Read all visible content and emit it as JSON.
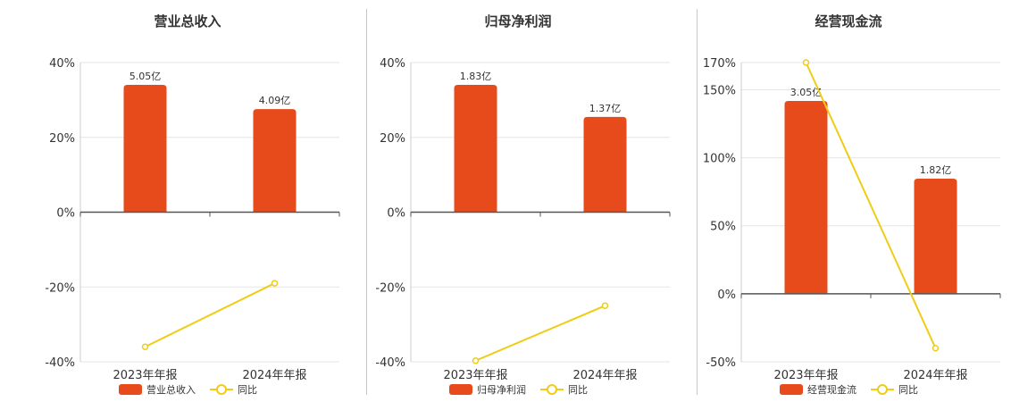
{
  "colors": {
    "bar": "#E84B1B",
    "line": "#F0CC14",
    "grid": "#e6e6e6",
    "axis": "#555555"
  },
  "legend": {
    "line_label": "同比"
  },
  "chart_data": [
    {
      "type": "bar",
      "title": "营业总收入",
      "categories": [
        "2023年年报",
        "2024年年报"
      ],
      "series": [
        {
          "name": "营业总收入",
          "type": "bar",
          "values": [
            5.05,
            4.09
          ],
          "labels": [
            "5.05亿",
            "4.09亿"
          ]
        },
        {
          "name": "同比",
          "type": "line",
          "values": [
            -36,
            -19
          ]
        }
      ],
      "ylim": [
        -40,
        40
      ],
      "yticks": [
        40,
        20,
        0,
        -20,
        -40
      ],
      "ytick_labels": [
        "40%",
        "20%",
        "0%",
        "-20%",
        "-40%"
      ],
      "grid": true,
      "legend": "bottom"
    },
    {
      "type": "bar",
      "title": "归母净利润",
      "categories": [
        "2023年年报",
        "2024年年报"
      ],
      "series": [
        {
          "name": "归母净利润",
          "type": "bar",
          "values": [
            1.83,
            1.37
          ],
          "labels": [
            "1.83亿",
            "1.37亿"
          ]
        },
        {
          "name": "同比",
          "type": "line",
          "values": [
            -39.7,
            -25
          ]
        }
      ],
      "ylim": [
        -40,
        40
      ],
      "yticks": [
        40,
        20,
        0,
        -20,
        -40
      ],
      "ytick_labels": [
        "40%",
        "20%",
        "0%",
        "-20%",
        "-40%"
      ],
      "grid": true,
      "legend": "bottom"
    },
    {
      "type": "bar",
      "title": "经营现金流",
      "categories": [
        "2023年年报",
        "2024年年报"
      ],
      "series": [
        {
          "name": "经营现金流",
          "type": "bar",
          "values": [
            3.05,
            1.82
          ],
          "labels": [
            "3.05亿",
            "1.82亿"
          ]
        },
        {
          "name": "同比",
          "type": "line",
          "values": [
            170,
            -40
          ]
        }
      ],
      "ylim": [
        -50,
        170
      ],
      "yticks": [
        170,
        150,
        100,
        50,
        0,
        -50
      ],
      "ytick_labels": [
        "170%",
        "150%",
        "100%",
        "50%",
        "0%",
        "-50%"
      ],
      "grid": true,
      "legend": "bottom"
    }
  ]
}
